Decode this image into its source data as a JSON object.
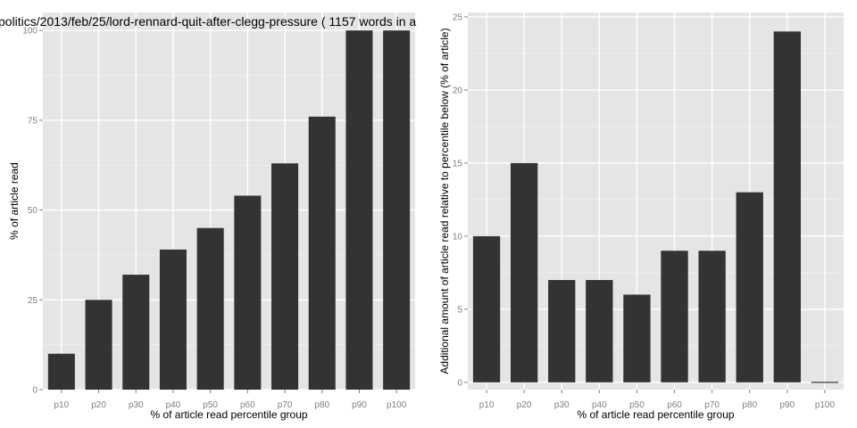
{
  "chart_data": [
    {
      "type": "bar",
      "title": "politics/2013/feb/25/lord-rennard-quit-after-clegg-pressure ( 1157 words in a",
      "xlabel": "% of article read percentile group",
      "ylabel": "% of article read",
      "categories": [
        "p10",
        "p20",
        "p30",
        "p40",
        "p50",
        "p60",
        "p70",
        "p80",
        "p90",
        "p100"
      ],
      "values": [
        10,
        25,
        32,
        39,
        45,
        54,
        63,
        76,
        100,
        100
      ],
      "ylim": [
        0,
        105
      ],
      "yticks": [
        0,
        25,
        50,
        75,
        100
      ],
      "grid": true,
      "bar_color": "#333333",
      "panel_color": "#e5e5e5"
    },
    {
      "type": "bar",
      "title": "",
      "xlabel": "% of article read percentile group",
      "ylabel": "Additional amount of article read relative to percentile below (% of article)",
      "categories": [
        "p10",
        "p20",
        "p30",
        "p40",
        "p50",
        "p60",
        "p70",
        "p80",
        "p90",
        "p100"
      ],
      "values": [
        10,
        15,
        7,
        7,
        6,
        9,
        9,
        13,
        24,
        0
      ],
      "ylim": [
        -0.5,
        25.3
      ],
      "yticks": [
        0,
        5,
        10,
        15,
        20,
        25
      ],
      "grid": true,
      "bar_color": "#333333",
      "panel_color": "#e5e5e5"
    }
  ]
}
